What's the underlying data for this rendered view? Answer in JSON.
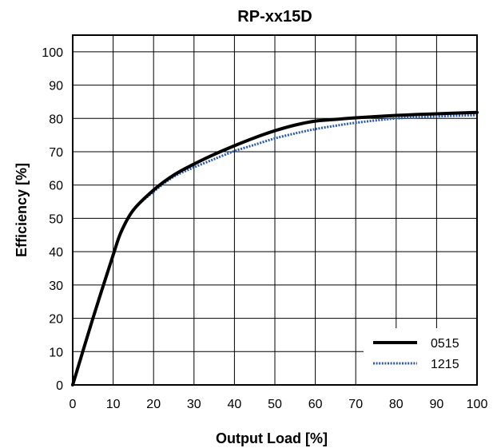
{
  "chart_data": {
    "type": "line",
    "title": "RP-xx15D",
    "xlabel": "Output Load [%]",
    "ylabel": "Efficiency [%]",
    "xlim": [
      0,
      100
    ],
    "ylim": [
      0,
      105
    ],
    "xticks": [
      0,
      10,
      20,
      30,
      40,
      50,
      60,
      70,
      80,
      90,
      100
    ],
    "yticks": [
      0,
      10,
      20,
      30,
      40,
      50,
      60,
      70,
      80,
      90,
      100
    ],
    "grid": true,
    "legend_position": "bottom-right",
    "series": [
      {
        "name": "0515",
        "color": "#000000",
        "style": "solid",
        "x": [
          0,
          5,
          10,
          12,
          15,
          20,
          25,
          30,
          35,
          40,
          45,
          50,
          55,
          60,
          65,
          70,
          80,
          90,
          100
        ],
        "y": [
          0,
          20,
          39,
          46,
          52.5,
          58.5,
          63,
          66.3,
          69.2,
          71.8,
          74.2,
          76.3,
          78,
          79.2,
          79.7,
          80.2,
          80.9,
          81.4,
          81.8
        ]
      },
      {
        "name": "1215",
        "color": "#2a5aa8",
        "style": "dotted",
        "x": [
          0,
          5,
          10,
          12,
          15,
          20,
          25,
          30,
          35,
          40,
          45,
          50,
          55,
          60,
          65,
          70,
          80,
          90,
          100
        ],
        "y": [
          0,
          20,
          39,
          46,
          52.5,
          58,
          62.5,
          65.3,
          67.8,
          70.2,
          72.1,
          74,
          75.5,
          76.8,
          77.8,
          78.7,
          80,
          80.6,
          81
        ]
      }
    ]
  }
}
